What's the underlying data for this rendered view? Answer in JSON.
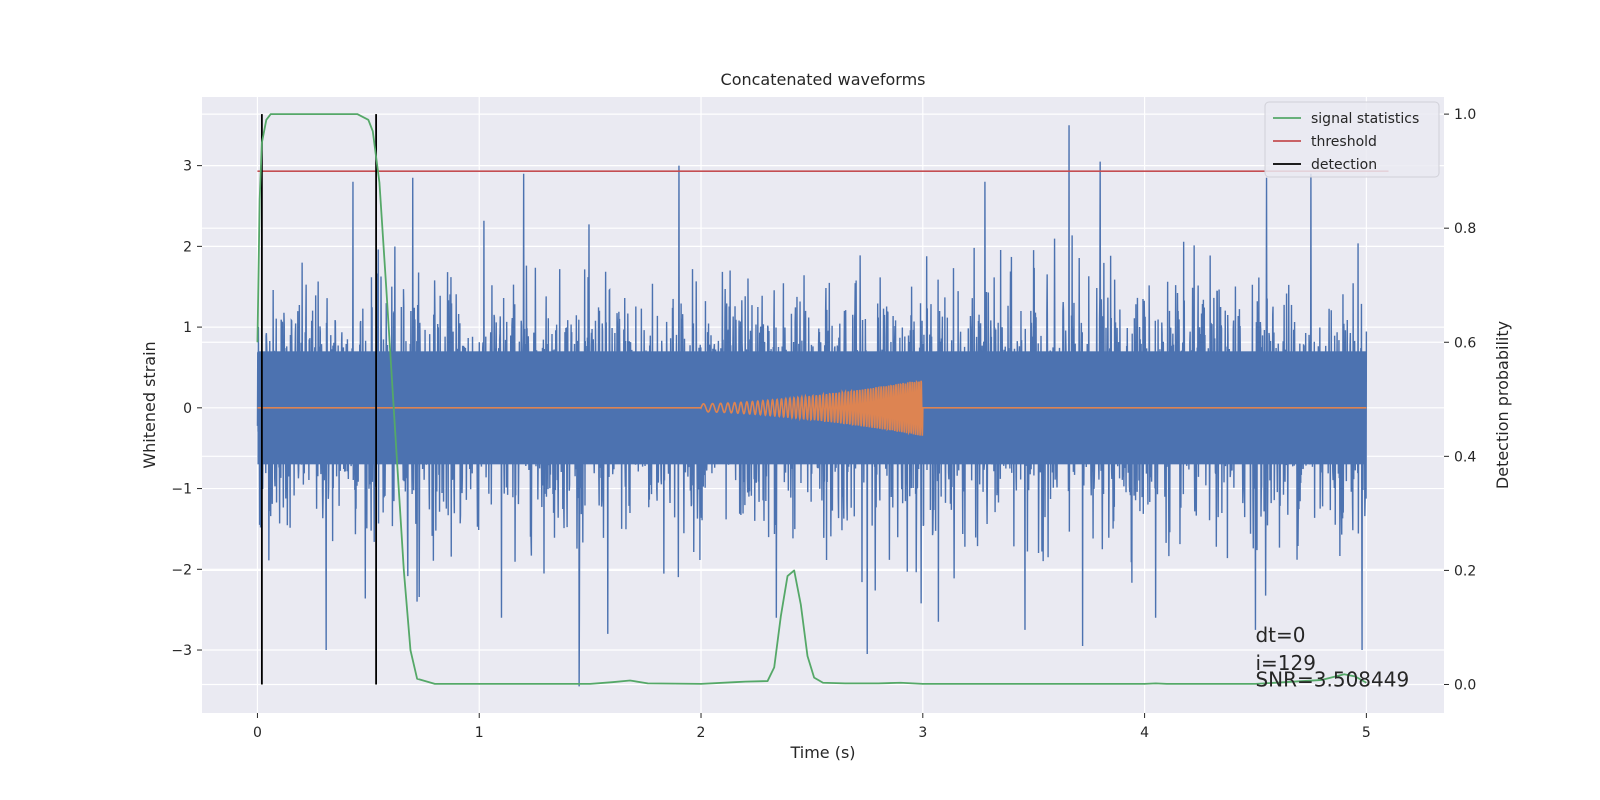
{
  "chart_data": {
    "type": "line",
    "title": "Concatenated waveforms",
    "xlabel": "Time (s)",
    "ylabel": "Whitened strain",
    "y2label": "Detection probability",
    "xlim": [
      -0.25,
      5.35
    ],
    "ylim": [
      -3.78,
      3.85
    ],
    "y2lim": [
      -0.05,
      1.03
    ],
    "xticks": [
      0,
      1,
      2,
      3,
      4,
      5
    ],
    "xtick_labels": [
      "0",
      "1",
      "2",
      "3",
      "4",
      "5"
    ],
    "yticks": [
      -3,
      -2,
      -1,
      0,
      1,
      2,
      3
    ],
    "ytick_labels": [
      "−3",
      "−2",
      "−1",
      "0",
      "1",
      "2",
      "3"
    ],
    "y2ticks": [
      0.0,
      0.2,
      0.4,
      0.6,
      0.8,
      1.0
    ],
    "y2tick_labels": [
      "0.0",
      "0.2",
      "0.4",
      "0.6",
      "0.8",
      "1.0"
    ],
    "grid": true,
    "legend_position": "top-right",
    "legend": [
      "signal statistics",
      "threshold",
      "detection"
    ],
    "colors": {
      "strain": "#4c72b0",
      "template": "#dd8452",
      "signal_statistics": "#55a868",
      "threshold": "#c44e52",
      "detection": "#000000",
      "background": "#eaeaf2",
      "grid": "#ffffff"
    },
    "strain_series": {
      "x_range": [
        0,
        5
      ],
      "core_amplitude": 0.7,
      "typical_peak": 2.2,
      "spikes": [
        {
          "x": 0.01,
          "y": 2.4
        },
        {
          "x": 0.01,
          "y": -1.45
        },
        {
          "x": 0.43,
          "y": 2.8
        },
        {
          "x": 0.7,
          "y": 2.85
        },
        {
          "x": 1.2,
          "y": 2.9
        },
        {
          "x": 1.9,
          "y": 3.0
        },
        {
          "x": 2.75,
          "y": 2.85
        },
        {
          "x": 3.28,
          "y": 2.8
        },
        {
          "x": 3.66,
          "y": 3.5
        },
        {
          "x": 3.8,
          "y": 3.05
        },
        {
          "x": 4.55,
          "y": 2.85
        },
        {
          "x": 4.75,
          "y": 2.9
        },
        {
          "x": 0.31,
          "y": -3.0
        },
        {
          "x": 0.72,
          "y": -2.4
        },
        {
          "x": 1.1,
          "y": -2.6
        },
        {
          "x": 1.45,
          "y": -3.45
        },
        {
          "x": 1.58,
          "y": -2.8
        },
        {
          "x": 2.34,
          "y": -2.6
        },
        {
          "x": 2.75,
          "y": -3.05
        },
        {
          "x": 3.07,
          "y": -2.65
        },
        {
          "x": 3.46,
          "y": -2.75
        },
        {
          "x": 3.72,
          "y": -2.95
        },
        {
          "x": 4.05,
          "y": -2.6
        },
        {
          "x": 4.5,
          "y": -2.75
        },
        {
          "x": 4.98,
          "y": -3.0
        }
      ]
    },
    "template_series": {
      "x_start": 2.0,
      "x_end": 3.0,
      "amplitude_start": 0.05,
      "amplitude_end": 0.35,
      "baseline_x": [
        0,
        5
      ],
      "baseline_y": 0
    },
    "signal_statistics": {
      "x": [
        0.0,
        0.01,
        0.02,
        0.04,
        0.06,
        0.1,
        0.2,
        0.3,
        0.4,
        0.45,
        0.5,
        0.52,
        0.55,
        0.58,
        0.62,
        0.66,
        0.69,
        0.72,
        0.8,
        1.0,
        1.5,
        1.6,
        1.68,
        1.76,
        2.0,
        2.15,
        2.2,
        2.3,
        2.33,
        2.36,
        2.39,
        2.42,
        2.45,
        2.48,
        2.51,
        2.55,
        2.65,
        2.8,
        2.9,
        3.0,
        3.5,
        4.0,
        4.05,
        4.1,
        4.5,
        4.8,
        4.9,
        4.95,
        5.0
      ],
      "y": [
        0.6,
        0.85,
        0.95,
        0.99,
        1.0,
        1.0,
        1.0,
        1.0,
        1.0,
        1.0,
        0.99,
        0.97,
        0.88,
        0.7,
        0.45,
        0.2,
        0.06,
        0.01,
        0.001,
        0.001,
        0.001,
        0.004,
        0.007,
        0.002,
        0.001,
        0.004,
        0.005,
        0.006,
        0.03,
        0.12,
        0.19,
        0.2,
        0.14,
        0.05,
        0.012,
        0.003,
        0.002,
        0.002,
        0.003,
        0.001,
        0.001,
        0.001,
        0.002,
        0.001,
        0.001,
        0.008,
        0.018,
        0.014,
        0.003
      ]
    },
    "threshold": {
      "value": 0.9,
      "x_range": [
        0,
        5.1
      ]
    },
    "detections": [
      0.02,
      0.535
    ],
    "annotations": [
      {
        "text": "dt=0",
        "x": 4.5,
        "y": -2.9
      },
      {
        "text": "i=129",
        "x": 4.5,
        "y": -3.25
      },
      {
        "text": "SNR=3.508449",
        "x": 4.5,
        "y": -3.45
      }
    ]
  }
}
